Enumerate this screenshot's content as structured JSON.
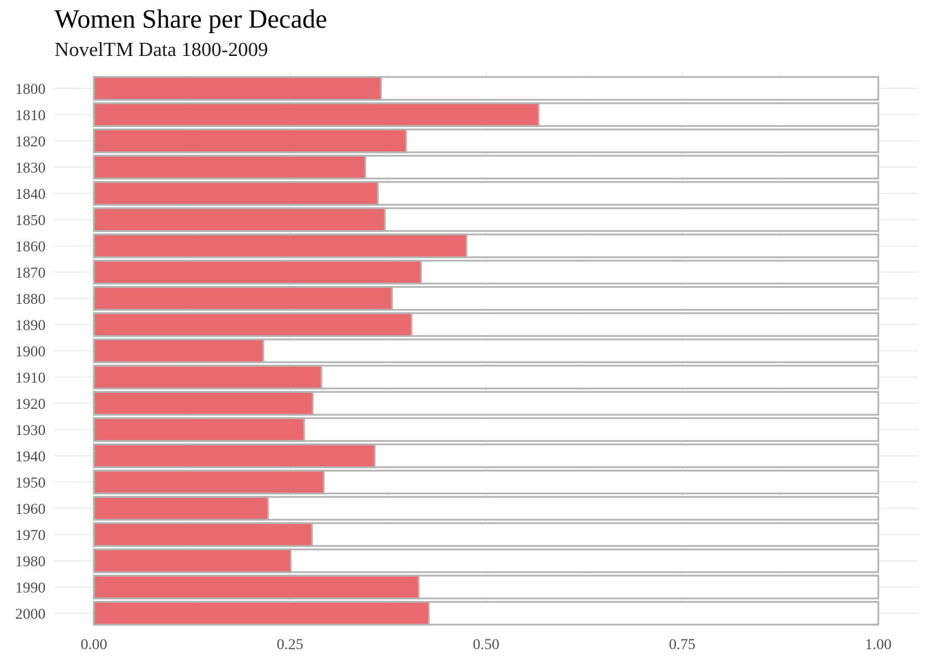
{
  "chart_data": {
    "type": "bar",
    "orientation": "horizontal",
    "stacked_as_share": true,
    "title": "Women Share per Decade",
    "subtitle": "NovelTM Data 1800-2009",
    "xlabel": "",
    "ylabel": "",
    "categories": [
      "1800",
      "1810",
      "1820",
      "1830",
      "1840",
      "1850",
      "1860",
      "1870",
      "1880",
      "1890",
      "1900",
      "1910",
      "1920",
      "1930",
      "1940",
      "1950",
      "1960",
      "1970",
      "1980",
      "1990",
      "2000"
    ],
    "series": [
      {
        "values": [
          0.366,
          0.567,
          0.398,
          0.346,
          0.362,
          0.371,
          0.475,
          0.417,
          0.38,
          0.405,
          0.216,
          0.29,
          0.279,
          0.268,
          0.358,
          0.293,
          0.222,
          0.278,
          0.251,
          0.414,
          0.427
        ],
        "color": "#e8696e"
      }
    ],
    "remainder_color": "#ffffff",
    "bar_border_color": "#b3b3b3",
    "xlim": [
      0,
      1
    ],
    "xticks": [
      "0.00",
      "0.25",
      "0.50",
      "0.75",
      "1.00"
    ],
    "xtick_values": [
      0,
      0.25,
      0.5,
      0.75,
      1.0
    ],
    "grid": true,
    "legend": "none"
  }
}
